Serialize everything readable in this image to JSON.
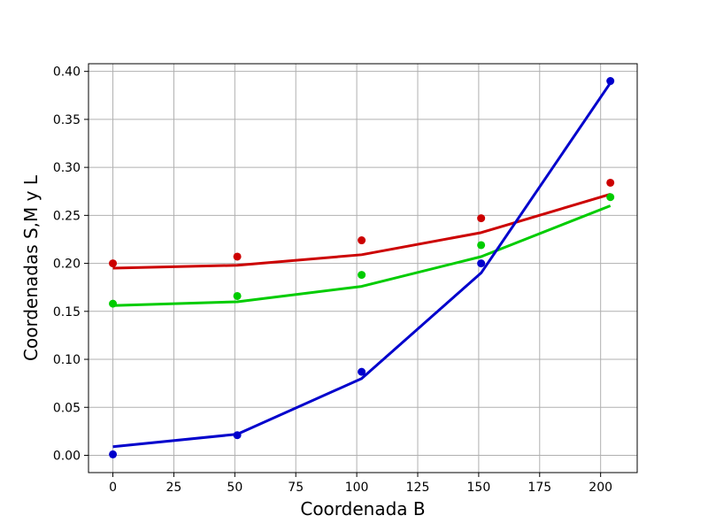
{
  "chart_data": {
    "type": "line",
    "xlabel": "Coordenada B",
    "ylabel": "Coordenadas S,M y L",
    "xlim": [
      -10,
      215
    ],
    "ylim": [
      -0.018,
      0.408
    ],
    "xticks": [
      0,
      25,
      50,
      75,
      100,
      125,
      150,
      175,
      200
    ],
    "yticks": [
      0.0,
      0.05,
      0.1,
      0.15,
      0.2,
      0.25,
      0.3,
      0.35,
      0.4
    ],
    "ytick_labels": [
      "0.00",
      "0.05",
      "0.10",
      "0.15",
      "0.20",
      "0.25",
      "0.30",
      "0.35",
      "0.40"
    ],
    "grid": true,
    "series": [
      {
        "color": "#cc0000",
        "points_x": [
          0,
          51,
          102,
          151,
          204
        ],
        "points_y": [
          0.2,
          0.207,
          0.224,
          0.247,
          0.284
        ],
        "line_x": [
          0,
          51,
          102,
          151,
          204
        ],
        "line_y": [
          0.195,
          0.198,
          0.209,
          0.232,
          0.272
        ]
      },
      {
        "color": "#00cc00",
        "points_x": [
          0,
          51,
          102,
          151,
          204
        ],
        "points_y": [
          0.158,
          0.166,
          0.188,
          0.219,
          0.269
        ],
        "line_x": [
          0,
          51,
          102,
          151,
          204
        ],
        "line_y": [
          0.156,
          0.16,
          0.176,
          0.207,
          0.26
        ]
      },
      {
        "color": "#0000cc",
        "points_x": [
          0,
          51,
          102,
          151,
          204
        ],
        "points_y": [
          0.001,
          0.021,
          0.087,
          0.2,
          0.39
        ],
        "line_x": [
          0,
          51,
          102,
          151,
          204
        ],
        "line_y": [
          0.009,
          0.022,
          0.08,
          0.19,
          0.388
        ]
      }
    ]
  }
}
